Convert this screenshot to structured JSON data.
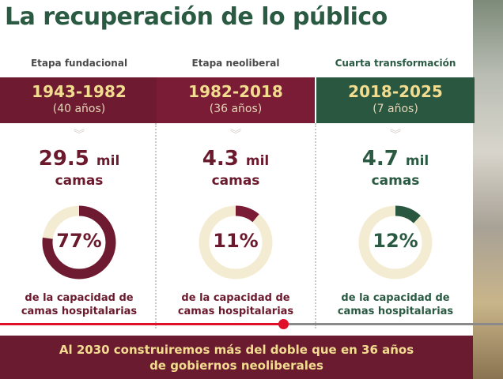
{
  "title": "La recuperación de lo público",
  "columns": [
    {
      "stage": "Etapa fundacional",
      "years": "1943-1982",
      "duration": "(40 años)",
      "value": "29.5",
      "unit": "mil",
      "camas": "camas",
      "percent": "77%",
      "fraction": 0.77,
      "caption1": "de la capacidad de",
      "caption2": "camas hospitalarias",
      "band_color": "#6e1b31",
      "text_color": "#6b1a2e",
      "stage_color": "#4a4a4a"
    },
    {
      "stage": "Etapa neoliberal",
      "years": "1982-2018",
      "duration": "(36 años)",
      "value": "4.3",
      "unit": "mil",
      "camas": "camas",
      "percent": "11%",
      "fraction": 0.11,
      "caption1": "de la capacidad de",
      "caption2": "camas hospitalarias",
      "band_color": "#7a1c35",
      "text_color": "#6b1a2e",
      "stage_color": "#4a4a4a"
    },
    {
      "stage": "Cuarta transformación",
      "years": "2018-2025",
      "duration": "(7 años)",
      "value": "4.7",
      "unit": "mil",
      "camas": "camas",
      "percent": "12%",
      "fraction": 0.12,
      "caption1": "de la capacidad de",
      "caption2": "camas hospitalarias",
      "band_color": "#2a5740",
      "text_color": "#2b5a43",
      "stage_color": "#2b5a43"
    }
  ],
  "footer": {
    "line1": "Al 2030 construiremos más del doble que en 36 años",
    "line2": "de  gobiernos neoliberales"
  },
  "player": {
    "progress": 0.563
  }
}
